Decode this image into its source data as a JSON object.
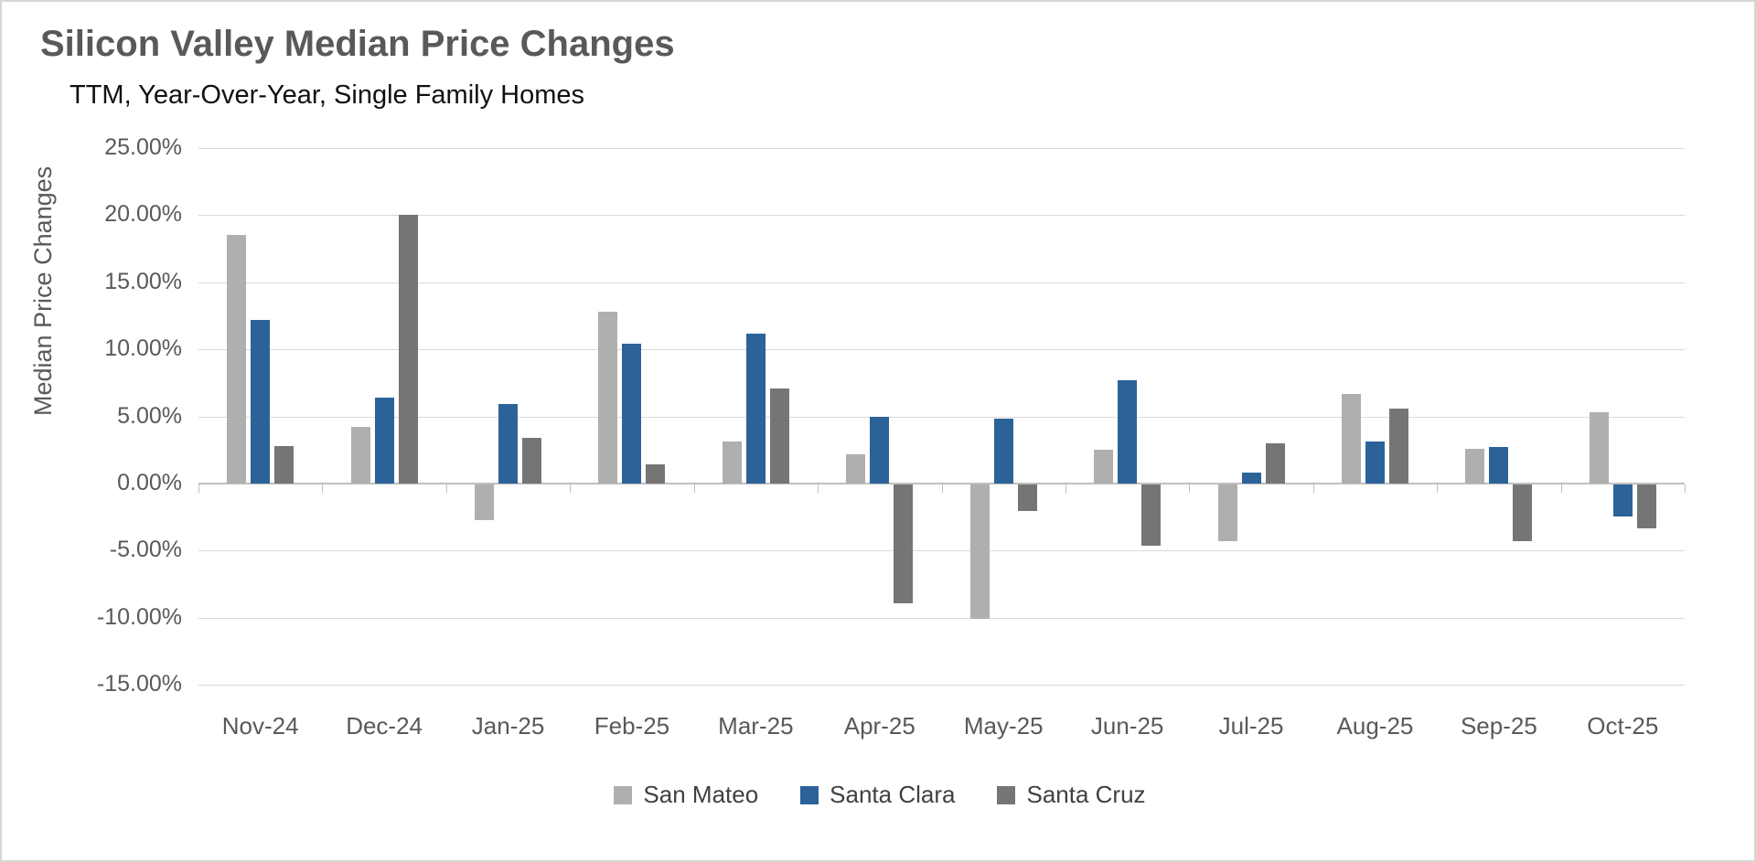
{
  "title": "Silicon Valley Median Price Changes",
  "subtitle": "TTM, Year-Over-Year, Single Family Homes",
  "chart_data": {
    "type": "bar",
    "title": "Silicon Valley Median Price Changes",
    "subtitle": "TTM, Year-Over-Year, Single Family Homes",
    "ylabel": "Median Price Changes",
    "xlabel": "",
    "ylim": [
      -15,
      25
    ],
    "grid": true,
    "legend_position": "bottom",
    "y_ticks": [
      "25.00%",
      "20.00%",
      "15.00%",
      "10.00%",
      "5.00%",
      "0.00%",
      "-5.00%",
      "-10.00%",
      "-15.00%"
    ],
    "categories": [
      "Nov-24",
      "Dec-24",
      "Jan-25",
      "Feb-25",
      "Mar-25",
      "Apr-25",
      "May-25",
      "Jun-25",
      "Jul-25",
      "Aug-25",
      "Sep-25",
      "Oct-25"
    ],
    "series": [
      {
        "name": "San Mateo",
        "color": "#afafaf",
        "values": [
          18.5,
          4.2,
          -2.7,
          12.8,
          3.1,
          2.2,
          -10.0,
          2.5,
          -4.2,
          6.7,
          2.6,
          5.3
        ]
      },
      {
        "name": "Santa Clara",
        "color": "#2b6399",
        "values": [
          12.2,
          6.4,
          5.9,
          10.4,
          11.2,
          5.0,
          4.8,
          7.7,
          0.8,
          3.1,
          2.7,
          -2.4
        ]
      },
      {
        "name": "Santa Cruz",
        "color": "#757575",
        "values": [
          2.8,
          20.0,
          3.4,
          1.4,
          7.1,
          -8.9,
          -2.0,
          -4.6,
          3.0,
          5.6,
          -4.2,
          -3.3
        ]
      }
    ]
  }
}
